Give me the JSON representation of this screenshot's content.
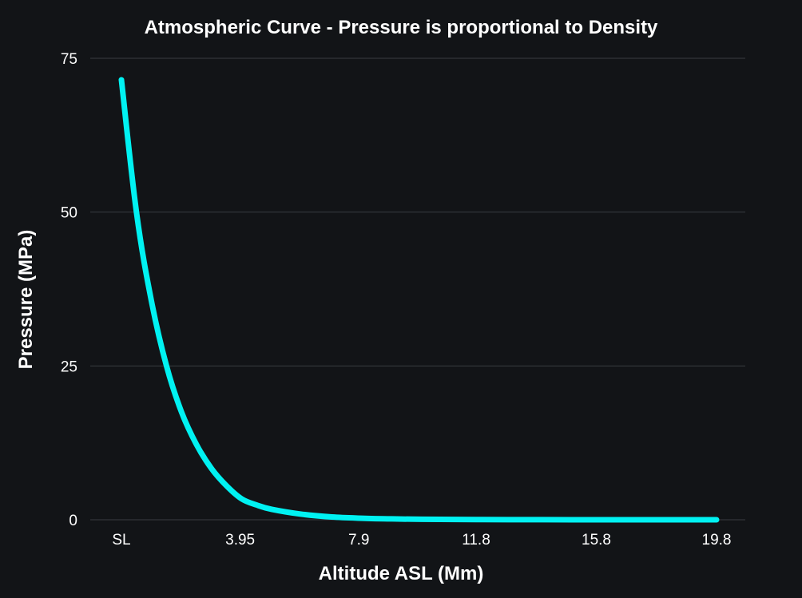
{
  "chart_data": {
    "type": "line",
    "title": "Atmospheric Curve - Pressure is proportional to Density",
    "xlabel": "Altitude ASL (Mm)",
    "ylabel": "Pressure (MPa)",
    "xlim": [
      0,
      19.8
    ],
    "ylim": [
      0,
      75
    ],
    "x_ticks": [
      {
        "value": 0,
        "label": "SL"
      },
      {
        "value": 3.95,
        "label": "3.95"
      },
      {
        "value": 7.9,
        "label": "7.9"
      },
      {
        "value": 11.8,
        "label": "11.8"
      },
      {
        "value": 15.8,
        "label": "15.8"
      },
      {
        "value": 19.8,
        "label": "19.8"
      }
    ],
    "y_ticks": [
      {
        "value": 0,
        "label": "0"
      },
      {
        "value": 25,
        "label": "25"
      },
      {
        "value": 50,
        "label": "50"
      },
      {
        "value": 75,
        "label": "75"
      }
    ],
    "grid": "horizontal",
    "series": [
      {
        "color": "#00f2f2",
        "x": [
          0,
          0.5,
          1.0,
          1.5,
          2.0,
          2.5,
          3.0,
          3.5,
          4.0,
          4.5,
          5.0,
          6.0,
          7.0,
          8.0,
          9.0,
          10.0,
          12.0,
          14.0,
          16.0,
          18.0,
          19.8
        ],
        "values": [
          71.5,
          50.0,
          35.5,
          25.0,
          17.5,
          12.2,
          8.3,
          5.5,
          3.4,
          2.4,
          1.7,
          0.9,
          0.45,
          0.25,
          0.14,
          0.08,
          0.03,
          0.01,
          0.005,
          0.002,
          0.001
        ]
      }
    ]
  },
  "colors": {
    "background": "#121417",
    "text": "#ffffff",
    "grid": "#3a3d42",
    "line": "#00f2f2"
  }
}
